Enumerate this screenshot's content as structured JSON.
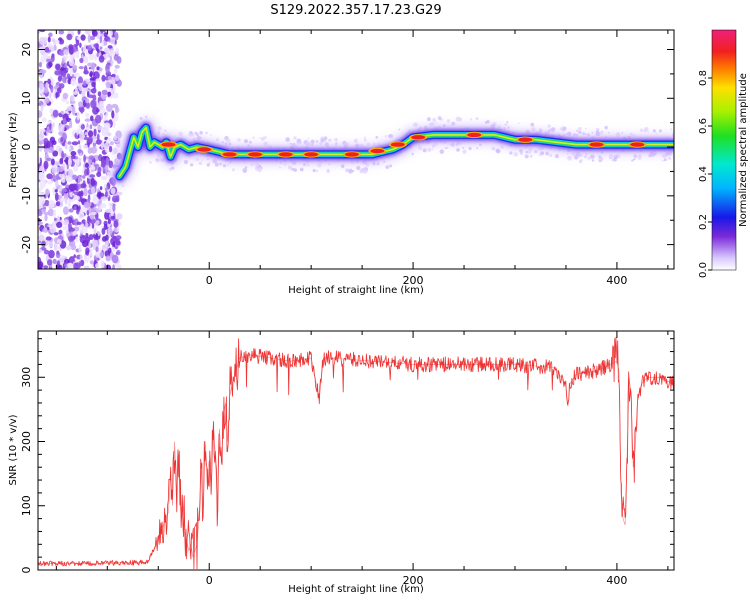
{
  "title": "S129.2022.357.17.23.G29",
  "chart_data": [
    {
      "type": "heatmap",
      "title": "",
      "xlabel": "Height of straight line (km)",
      "ylabel": "Frequency (Hz)",
      "xlim": [
        -168,
        456
      ],
      "ylim": [
        -25,
        24
      ],
      "x_ticks": [
        0,
        200,
        400
      ],
      "y_ticks": [
        -20,
        -10,
        0,
        10,
        20
      ],
      "colorbar": {
        "label": "Normalized spectral amplitude",
        "range": [
          0,
          1
        ],
        "ticks": [
          "0.0",
          "0.2",
          "0.4",
          "0.6",
          "0.8"
        ]
      },
      "noise_region_x": [
        -168,
        -88
      ],
      "ridge": {
        "x": [
          -88,
          -82,
          -78,
          -74,
          -70,
          -66,
          -62,
          -58,
          -54,
          -50,
          -46,
          -42,
          -38,
          -34,
          -28,
          -20,
          -12,
          0,
          20,
          40,
          60,
          80,
          100,
          120,
          140,
          160,
          170,
          180,
          190,
          200,
          220,
          240,
          260,
          280,
          300,
          320,
          340,
          360,
          380,
          400,
          420,
          456
        ],
        "freq_hz": [
          -6,
          -4,
          -1,
          2,
          0,
          3,
          4,
          0,
          1,
          0.5,
          0,
          1,
          -2,
          0,
          0.5,
          -0.5,
          0,
          -0.5,
          -1.5,
          -1.5,
          -1.5,
          -1.5,
          -1.5,
          -1.5,
          -1.5,
          -1.5,
          -1,
          -0.5,
          0.5,
          2,
          2.5,
          2.5,
          2.5,
          2.5,
          1.5,
          1.5,
          1,
          0.5,
          0.5,
          0.5,
          0.5,
          0.5
        ]
      },
      "peaks": [
        {
          "x": -40,
          "freq_hz": 0.5
        },
        {
          "x": -5,
          "freq_hz": -0.5
        },
        {
          "x": 20,
          "freq_hz": -1.5
        },
        {
          "x": 45,
          "freq_hz": -1.5
        },
        {
          "x": 75,
          "freq_hz": -1.5
        },
        {
          "x": 100,
          "freq_hz": -1.5
        },
        {
          "x": 140,
          "freq_hz": -1.5
        },
        {
          "x": 165,
          "freq_hz": -0.8
        },
        {
          "x": 185,
          "freq_hz": 0.5
        },
        {
          "x": 205,
          "freq_hz": 2
        },
        {
          "x": 260,
          "freq_hz": 2.5
        },
        {
          "x": 310,
          "freq_hz": 1.5
        },
        {
          "x": 380,
          "freq_hz": 0.5
        },
        {
          "x": 420,
          "freq_hz": 0.5
        }
      ]
    },
    {
      "type": "line",
      "title": "",
      "xlabel": "Height of straight line (km)",
      "ylabel": "SNR (10 * v/v)",
      "xlim": [
        -168,
        456
      ],
      "ylim": [
        0,
        372
      ],
      "x_ticks": [
        0,
        200,
        400
      ],
      "y_ticks": [
        0,
        100,
        200,
        300
      ],
      "series": [
        {
          "color": "#ee3333",
          "x": [
            -168,
            -120,
            -60,
            -55,
            -50,
            -45,
            -40,
            -38,
            -36,
            -34,
            -32,
            -30,
            -28,
            -26,
            -24,
            -20,
            -18,
            -16,
            -14,
            -12,
            -10,
            -8,
            -6,
            -4,
            -2,
            0,
            2,
            4,
            6,
            8,
            10,
            12,
            14,
            16,
            18,
            20,
            22,
            24,
            26,
            28,
            30,
            40,
            60,
            80,
            100,
            108,
            110,
            112,
            120,
            160,
            200,
            250,
            300,
            340,
            350,
            352,
            354,
            360,
            380,
            400,
            402,
            404,
            406,
            408,
            410,
            412,
            414,
            416,
            418,
            420,
            424,
            430,
            440,
            456
          ],
          "snr": [
            10,
            10,
            12,
            30,
            50,
            70,
            90,
            150,
            100,
            200,
            120,
            180,
            90,
            110,
            60,
            30,
            40,
            20,
            30,
            40,
            80,
            160,
            90,
            200,
            150,
            170,
            120,
            230,
            180,
            100,
            220,
            170,
            240,
            260,
            200,
            270,
            285,
            300,
            310,
            320,
            330,
            335,
            330,
            325,
            330,
            265,
            300,
            330,
            330,
            325,
            320,
            320,
            320,
            315,
            285,
            255,
            290,
            305,
            310,
            325,
            310,
            120,
            80,
            70,
            180,
            300,
            270,
            160,
            190,
            260,
            290,
            300,
            300,
            290
          ]
        }
      ]
    }
  ]
}
